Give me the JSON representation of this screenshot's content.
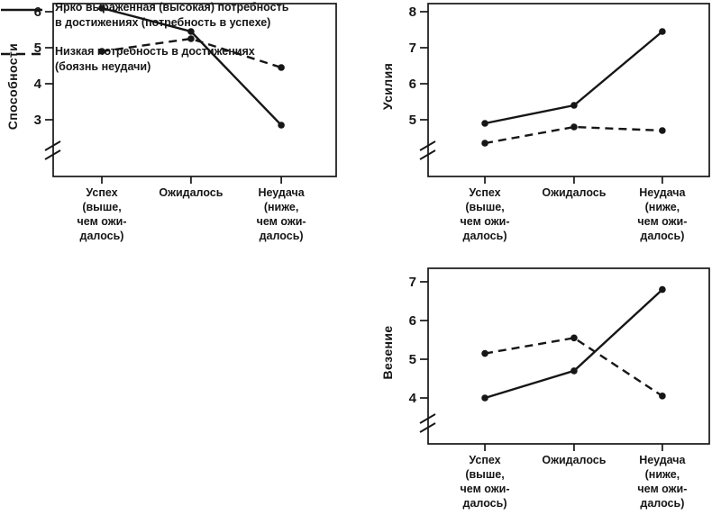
{
  "colors": {
    "ink": "#161616",
    "background": "#ffffff"
  },
  "figure": {
    "legend": {
      "position": "bottom-left",
      "items": [
        {
          "style": "solid",
          "lines": [
            "Ярко выраженная (высокая) потребность",
            "в достижениях (потребность в успехе)"
          ]
        },
        {
          "style": "dashed",
          "lines": [
            "Низкая потребность в достижениях",
            "(боязнь неудачи)"
          ]
        }
      ]
    }
  },
  "chart_data": [
    {
      "type": "line",
      "ylabel": "Способности",
      "yticks": [
        6,
        5,
        4,
        3
      ],
      "axis_break": true,
      "grid": false,
      "categories": [
        [
          "Успех",
          "(выше,",
          "чем ожи-",
          "далось)"
        ],
        [
          "Ожидалось"
        ],
        [
          "Неудача",
          "(ниже,",
          "чем ожи-",
          "далось)"
        ]
      ],
      "series": [
        {
          "name": "Ярко выраженная (высокая) потребность в достижениях (потребность в успехе)",
          "style": "solid",
          "values": [
            6.1,
            5.45,
            2.85
          ]
        },
        {
          "name": "Низкая потребность в достижениях (боязнь неудачи)",
          "style": "dashed",
          "values": [
            4.9,
            5.25,
            4.45
          ]
        }
      ]
    },
    {
      "type": "line",
      "ylabel": "Усилия",
      "yticks": [
        8,
        7,
        6,
        5
      ],
      "axis_break": true,
      "grid": false,
      "categories": [
        [
          "Успех",
          "(выше,",
          "чем ожи-",
          "далось)"
        ],
        [
          "Ожидалось"
        ],
        [
          "Неудача",
          "(ниже,",
          "чем ожи-",
          "далось)"
        ]
      ],
      "series": [
        {
          "name": "Ярко выраженная (высокая) потребность в достижениях (потребность в успехе)",
          "style": "solid",
          "values": [
            4.9,
            5.4,
            7.45
          ]
        },
        {
          "name": "Низкая потребность в достижениях (боязнь неудачи)",
          "style": "dashed",
          "values": [
            4.35,
            4.8,
            4.7
          ]
        }
      ]
    },
    {
      "type": "line",
      "ylabel": "Везение",
      "yticks": [
        7,
        6,
        5,
        4
      ],
      "axis_break": true,
      "grid": false,
      "categories": [
        [
          "Успех",
          "(выше,",
          "чем ожи-",
          "далось)"
        ],
        [
          "Ожидалось"
        ],
        [
          "Неудача",
          "(ниже,",
          "чем ожи-",
          "далось)"
        ]
      ],
      "series": [
        {
          "name": "Ярко выраженная (высокая) потребность в достижениях (потребность в успехе)",
          "style": "solid",
          "values": [
            4.0,
            4.7,
            6.8
          ]
        },
        {
          "name": "Низкая потребность в достижениях (боязнь неудачи)",
          "style": "dashed",
          "values": [
            5.15,
            5.55,
            4.05
          ]
        }
      ]
    }
  ]
}
